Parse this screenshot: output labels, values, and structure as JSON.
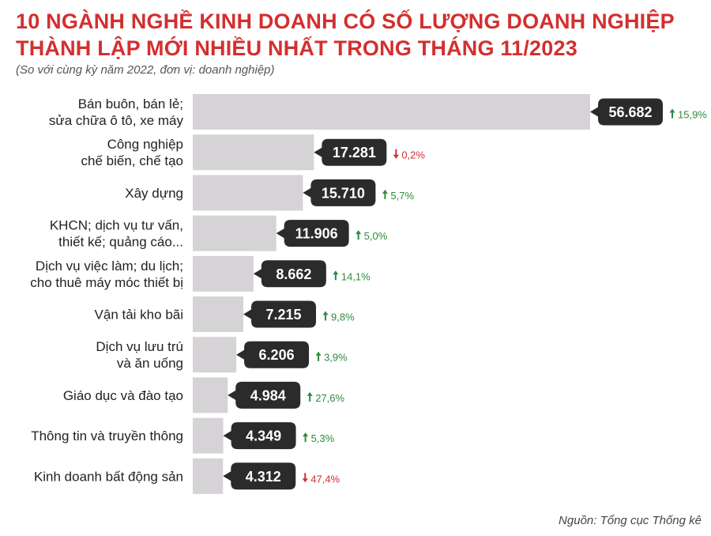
{
  "header": {
    "title_line1": "10 NGÀNH NGHỀ KINH DOANH CÓ SỐ LƯỢNG DOANH NGHIỆP",
    "title_line2": "THÀNH LẬP MỚI NHIỀU NHẤT TRONG THÁNG 11/2023",
    "subtitle": "(So với cùng kỳ năm 2022, đơn vị: doanh nghiệp)"
  },
  "footer": {
    "source": "Nguồn: Tổng cục Thống kê"
  },
  "colors": {
    "title": "#d32f2f",
    "bar": "#d6d3d6",
    "callout": "#2b2b2b",
    "up": "#2e8b3e",
    "down": "#d32f2f"
  },
  "chart_data": {
    "type": "bar",
    "orientation": "horizontal",
    "title": "10 NGÀNH NGHỀ KINH DOANH CÓ SỐ LƯỢNG DOANH NGHIỆP THÀNH LẬP MỚI NHIỀU NHẤT TRONG THÁNG 11/2023",
    "subtitle": "(So với cùng kỳ năm 2022, đơn vị: doanh nghiệp)",
    "categories": [
      [
        "Bán buôn, bán lẻ;",
        "sửa chữa ô tô, xe máy"
      ],
      [
        "Công nghiệp",
        "chế biến, chế tạo"
      ],
      [
        "Xây dựng"
      ],
      [
        "KHCN; dịch vụ tư vấn,",
        "thiết kế; quảng cáo..."
      ],
      [
        "Dịch vụ việc làm; du lịch;",
        "cho thuê máy móc thiết bị"
      ],
      [
        "Vận tải kho bãi"
      ],
      [
        "Dịch vụ lưu trú",
        "và ăn uống"
      ],
      [
        "Giáo dục và đào tạo"
      ],
      [
        "Thông tin và truyền thông"
      ],
      [
        "Kinh doanh bất động sản"
      ]
    ],
    "values": [
      56682,
      17281,
      15710,
      11906,
      8662,
      7215,
      6206,
      4984,
      4349,
      4312
    ],
    "value_labels": [
      "56.682",
      "17.281",
      "15.710",
      "11.906",
      "8.662",
      "7.215",
      "6.206",
      "4.984",
      "4.349",
      "4.312"
    ],
    "changes": [
      {
        "direction": "up",
        "label": "15,9%"
      },
      {
        "direction": "down",
        "label": "0,2%"
      },
      {
        "direction": "up",
        "label": "5,7%"
      },
      {
        "direction": "up",
        "label": "5,0%"
      },
      {
        "direction": "up",
        "label": "14,1%"
      },
      {
        "direction": "up",
        "label": "9,8%"
      },
      {
        "direction": "up",
        "label": "3,9%"
      },
      {
        "direction": "up",
        "label": "27,6%"
      },
      {
        "direction": "up",
        "label": "5,3%"
      },
      {
        "direction": "down",
        "label": "47,4%"
      }
    ],
    "xlim": [
      0,
      57000
    ],
    "grid": false,
    "legend": "none"
  }
}
